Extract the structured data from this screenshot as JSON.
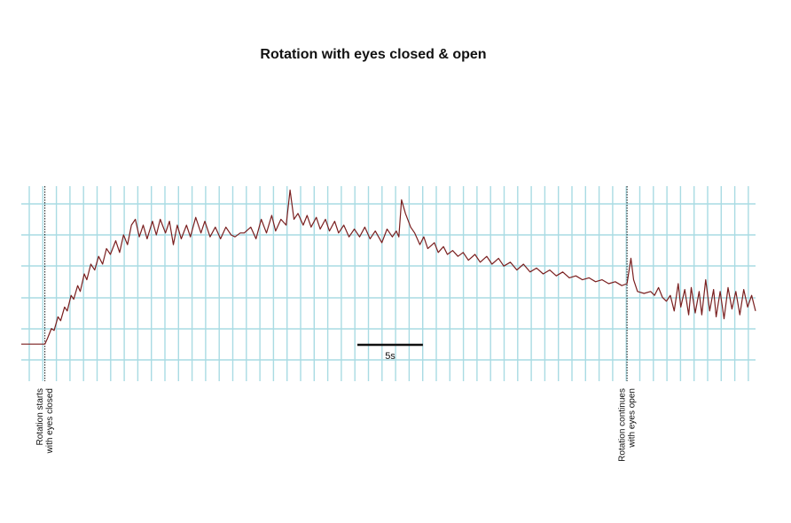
{
  "chart_data": {
    "type": "line",
    "title": "Rotation with eyes closed & open",
    "xlabel": "",
    "ylabel": "",
    "grid": true,
    "colors": {
      "trace": "#7a1f1f",
      "grid": "#a9dbe3",
      "marker": "#111111",
      "text": "#111111"
    },
    "x_unit": "s",
    "xlim": [
      0,
      56
    ],
    "ylim": [
      0,
      1
    ],
    "scale_bar": {
      "label": "5s",
      "length": 5
    },
    "annotations": [
      {
        "x": 1.8,
        "lines": [
          "Rotation starts",
          "with eyes closed"
        ]
      },
      {
        "x": 46.2,
        "lines": [
          "Rotation continues",
          "with eyes open"
        ]
      }
    ],
    "series": [
      {
        "points": [
          [
            0.0,
            0.19
          ],
          [
            1.8,
            0.19
          ],
          [
            2.0,
            0.22
          ],
          [
            2.3,
            0.27
          ],
          [
            2.5,
            0.26
          ],
          [
            2.8,
            0.33
          ],
          [
            3.0,
            0.31
          ],
          [
            3.3,
            0.38
          ],
          [
            3.5,
            0.36
          ],
          [
            3.8,
            0.44
          ],
          [
            4.0,
            0.42
          ],
          [
            4.3,
            0.49
          ],
          [
            4.5,
            0.46
          ],
          [
            4.8,
            0.55
          ],
          [
            5.0,
            0.52
          ],
          [
            5.3,
            0.6
          ],
          [
            5.6,
            0.57
          ],
          [
            5.9,
            0.64
          ],
          [
            6.2,
            0.6
          ],
          [
            6.5,
            0.68
          ],
          [
            6.8,
            0.65
          ],
          [
            7.2,
            0.72
          ],
          [
            7.5,
            0.66
          ],
          [
            7.8,
            0.75
          ],
          [
            8.1,
            0.7
          ],
          [
            8.4,
            0.8
          ],
          [
            8.7,
            0.83
          ],
          [
            9.0,
            0.74
          ],
          [
            9.3,
            0.8
          ],
          [
            9.6,
            0.73
          ],
          [
            10.0,
            0.82
          ],
          [
            10.3,
            0.75
          ],
          [
            10.6,
            0.83
          ],
          [
            11.0,
            0.76
          ],
          [
            11.3,
            0.82
          ],
          [
            11.6,
            0.7
          ],
          [
            11.9,
            0.8
          ],
          [
            12.2,
            0.73
          ],
          [
            12.6,
            0.8
          ],
          [
            12.9,
            0.74
          ],
          [
            13.3,
            0.84
          ],
          [
            13.7,
            0.76
          ],
          [
            14.0,
            0.82
          ],
          [
            14.4,
            0.74
          ],
          [
            14.8,
            0.79
          ],
          [
            15.2,
            0.73
          ],
          [
            15.6,
            0.79
          ],
          [
            16.0,
            0.75
          ],
          [
            16.3,
            0.74
          ],
          [
            16.7,
            0.76
          ],
          [
            17.0,
            0.76
          ],
          [
            17.5,
            0.79
          ],
          [
            17.9,
            0.73
          ],
          [
            18.3,
            0.83
          ],
          [
            18.7,
            0.76
          ],
          [
            19.1,
            0.85
          ],
          [
            19.4,
            0.77
          ],
          [
            19.8,
            0.83
          ],
          [
            20.2,
            0.8
          ],
          [
            20.5,
            0.98
          ],
          [
            20.8,
            0.83
          ],
          [
            21.1,
            0.86
          ],
          [
            21.5,
            0.8
          ],
          [
            21.8,
            0.85
          ],
          [
            22.1,
            0.79
          ],
          [
            22.5,
            0.84
          ],
          [
            22.8,
            0.78
          ],
          [
            23.2,
            0.83
          ],
          [
            23.5,
            0.77
          ],
          [
            23.9,
            0.82
          ],
          [
            24.2,
            0.76
          ],
          [
            24.6,
            0.8
          ],
          [
            25.0,
            0.74
          ],
          [
            25.4,
            0.78
          ],
          [
            25.8,
            0.74
          ],
          [
            26.2,
            0.79
          ],
          [
            26.6,
            0.73
          ],
          [
            27.0,
            0.77
          ],
          [
            27.5,
            0.71
          ],
          [
            27.9,
            0.78
          ],
          [
            28.3,
            0.74
          ],
          [
            28.6,
            0.77
          ],
          [
            28.8,
            0.74
          ],
          [
            29.0,
            0.93
          ],
          [
            29.3,
            0.86
          ],
          [
            29.7,
            0.79
          ],
          [
            30.0,
            0.76
          ],
          [
            30.4,
            0.7
          ],
          [
            30.7,
            0.74
          ],
          [
            31.0,
            0.68
          ],
          [
            31.5,
            0.71
          ],
          [
            31.8,
            0.66
          ],
          [
            32.2,
            0.69
          ],
          [
            32.5,
            0.65
          ],
          [
            32.9,
            0.67
          ],
          [
            33.3,
            0.64
          ],
          [
            33.7,
            0.66
          ],
          [
            34.1,
            0.62
          ],
          [
            34.6,
            0.65
          ],
          [
            35.0,
            0.61
          ],
          [
            35.5,
            0.64
          ],
          [
            35.9,
            0.6
          ],
          [
            36.4,
            0.63
          ],
          [
            36.8,
            0.59
          ],
          [
            37.3,
            0.61
          ],
          [
            37.8,
            0.57
          ],
          [
            38.3,
            0.6
          ],
          [
            38.8,
            0.56
          ],
          [
            39.3,
            0.58
          ],
          [
            39.8,
            0.55
          ],
          [
            40.3,
            0.57
          ],
          [
            40.8,
            0.54
          ],
          [
            41.3,
            0.56
          ],
          [
            41.8,
            0.53
          ],
          [
            42.3,
            0.54
          ],
          [
            42.8,
            0.52
          ],
          [
            43.3,
            0.53
          ],
          [
            43.8,
            0.51
          ],
          [
            44.3,
            0.52
          ],
          [
            44.8,
            0.5
          ],
          [
            45.3,
            0.51
          ],
          [
            45.8,
            0.49
          ],
          [
            46.2,
            0.5
          ],
          [
            46.5,
            0.63
          ],
          [
            46.7,
            0.52
          ],
          [
            47.0,
            0.46
          ],
          [
            47.5,
            0.45
          ],
          [
            48.0,
            0.46
          ],
          [
            48.3,
            0.44
          ],
          [
            48.6,
            0.48
          ],
          [
            48.9,
            0.43
          ],
          [
            49.2,
            0.41
          ],
          [
            49.5,
            0.44
          ],
          [
            49.8,
            0.36
          ],
          [
            50.1,
            0.5
          ],
          [
            50.3,
            0.38
          ],
          [
            50.6,
            0.47
          ],
          [
            50.9,
            0.34
          ],
          [
            51.1,
            0.48
          ],
          [
            51.4,
            0.35
          ],
          [
            51.7,
            0.46
          ],
          [
            51.9,
            0.34
          ],
          [
            52.2,
            0.52
          ],
          [
            52.5,
            0.36
          ],
          [
            52.8,
            0.47
          ],
          [
            53.0,
            0.33
          ],
          [
            53.3,
            0.46
          ],
          [
            53.6,
            0.32
          ],
          [
            53.9,
            0.48
          ],
          [
            54.2,
            0.37
          ],
          [
            54.5,
            0.46
          ],
          [
            54.8,
            0.34
          ],
          [
            55.1,
            0.47
          ],
          [
            55.4,
            0.38
          ],
          [
            55.7,
            0.44
          ],
          [
            56.0,
            0.36
          ]
        ]
      }
    ]
  }
}
